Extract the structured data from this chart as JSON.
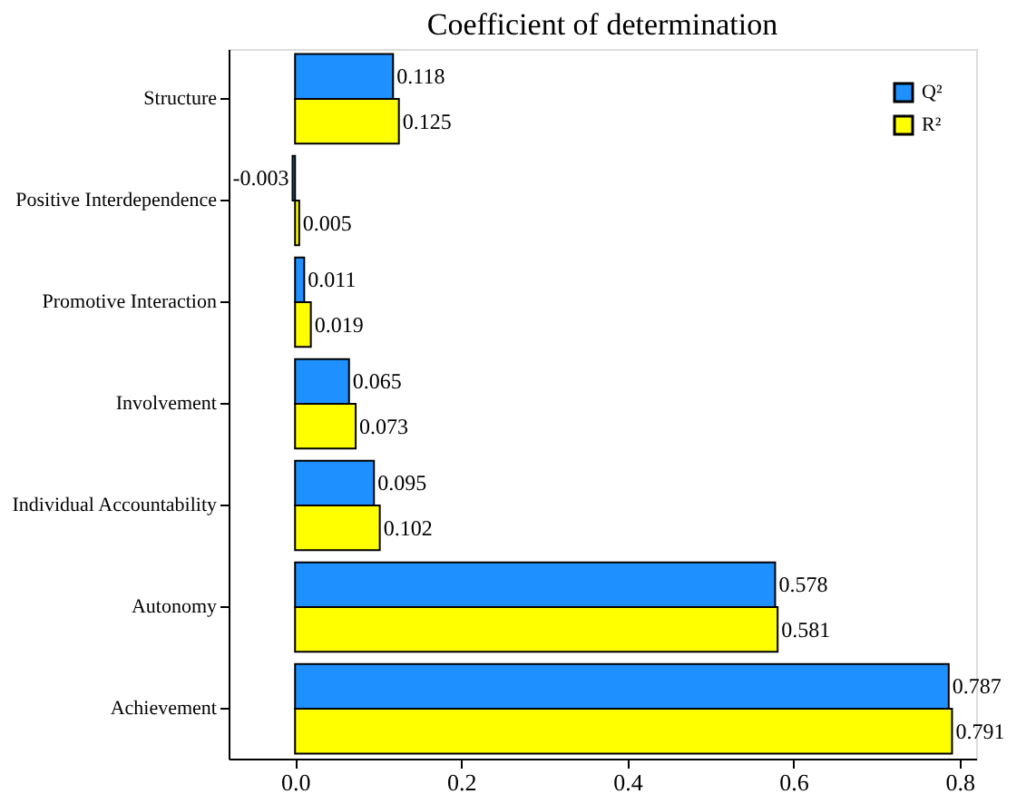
{
  "chart_data": {
    "type": "bar",
    "orientation": "horizontal",
    "title": "Coefficient of determination",
    "categories": [
      "Structure",
      "Positive Interdependence",
      "Promotive Interaction",
      "Involvement",
      "Individual Accountability",
      "Autonomy",
      "Achievement"
    ],
    "series": [
      {
        "name": "Q²",
        "color": "#1e90ff",
        "values": [
          0.118,
          -0.003,
          0.011,
          0.065,
          0.095,
          0.578,
          0.787
        ]
      },
      {
        "name": "R²",
        "color": "#ffff00",
        "values": [
          0.125,
          0.005,
          0.019,
          0.073,
          0.102,
          0.581,
          0.791
        ]
      }
    ],
    "xlim": [
      -0.08,
      0.82
    ],
    "xticks": [
      {
        "value": 0,
        "label": "0.0"
      },
      {
        "value": 0.2,
        "label": "0.2"
      },
      {
        "value": 0.4,
        "label": "0.4"
      },
      {
        "value": 0.6,
        "label": "0.6"
      },
      {
        "value": 0.8,
        "label": "0.8"
      }
    ],
    "data_labels": true,
    "legend": "top right",
    "grid": false
  }
}
